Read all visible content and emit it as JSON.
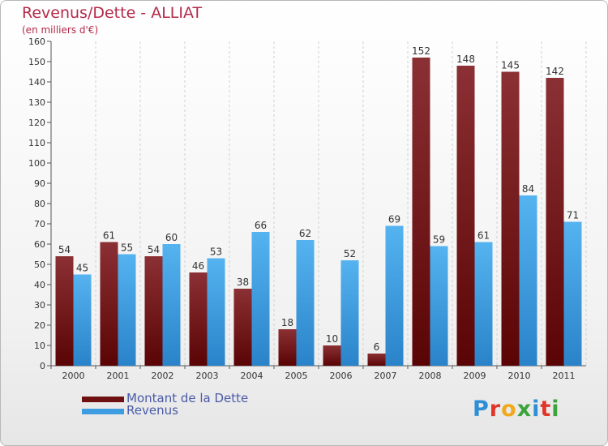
{
  "header": {
    "title": "Revenus/Dette - ALLIAT",
    "subtitle": "(en milliers d'€)"
  },
  "legend": {
    "items": [
      {
        "label": "Montant de la Dette",
        "color": "#6e0f12"
      },
      {
        "label": "Revenus",
        "color": "#3d9de0"
      }
    ]
  },
  "logo": {
    "text": "Proxiti",
    "letter_colors": [
      "#2e8fd6",
      "#e0362a",
      "#f0a81c",
      "#3ba43c",
      "#2e8fd6",
      "#e0362a",
      "#3ba43c"
    ]
  },
  "colors": {
    "dette_top": "#8b3034",
    "dette_bottom": "#5a0405",
    "revenus_top": "#55b3f0",
    "revenus_bottom": "#2a83c9",
    "axis": "#555555",
    "grid": "#d0d0d0"
  },
  "chart_data": {
    "type": "bar",
    "categories": [
      "2000",
      "2001",
      "2002",
      "2003",
      "2004",
      "2005",
      "2006",
      "2007",
      "2008",
      "2009",
      "2010",
      "2011"
    ],
    "series": [
      {
        "name": "Montant de la Dette",
        "values": [
          54,
          61,
          54,
          46,
          38,
          18,
          10,
          6,
          152,
          148,
          145,
          142
        ]
      },
      {
        "name": "Revenus",
        "values": [
          45,
          55,
          60,
          53,
          66,
          62,
          52,
          69,
          59,
          61,
          84,
          71
        ]
      }
    ],
    "ylim": [
      0,
      160
    ],
    "yticks": [
      0,
      10,
      20,
      30,
      40,
      50,
      60,
      70,
      80,
      90,
      100,
      110,
      120,
      130,
      140,
      150,
      160
    ],
    "grid": "vertical-dashed"
  }
}
